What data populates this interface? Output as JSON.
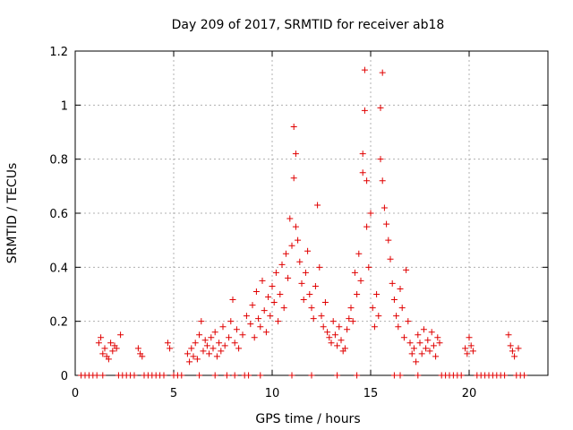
{
  "chart_data": {
    "type": "scatter",
    "title": "Day 209 of 2017, SRMTID for receiver ab18",
    "xlabel": "GPS time / hours",
    "ylabel": "SRMTID / TECUs",
    "xlim": [
      0,
      24
    ],
    "ylim": [
      0,
      1.2
    ],
    "xticks": [
      0,
      5,
      10,
      15,
      20
    ],
    "xtick_labels": [
      "0",
      "5",
      "10",
      "15",
      "20"
    ],
    "yticks": [
      0,
      0.2,
      0.4,
      0.6,
      0.8,
      1.0,
      1.2
    ],
    "ytick_labels": [
      "0",
      "0.2",
      "0.4",
      "0.6",
      "0.8",
      "1",
      "1.2"
    ],
    "grid": true,
    "marker": "+",
    "color": "#e00000",
    "series": [
      {
        "name": "SRMTID",
        "x": [
          1.2,
          1.3,
          1.4,
          1.5,
          1.6,
          1.7,
          1.8,
          1.9,
          2.0,
          2.1,
          2.3,
          3.2,
          3.3,
          3.4,
          4.7,
          4.8,
          5.7,
          5.8,
          5.9,
          6.0,
          6.1,
          6.2,
          6.3,
          6.4,
          6.5,
          6.6,
          6.7,
          6.8,
          6.9,
          7.0,
          7.1,
          7.2,
          7.3,
          7.4,
          7.5,
          7.6,
          7.8,
          7.9,
          8.0,
          8.1,
          8.2,
          8.3,
          8.5,
          8.7,
          8.9,
          9.0,
          9.1,
          9.2,
          9.3,
          9.4,
          9.5,
          9.6,
          9.7,
          9.8,
          9.9,
          10.0,
          10.1,
          10.2,
          10.3,
          10.4,
          10.5,
          10.6,
          10.7,
          10.8,
          10.9,
          11.0,
          11.1,
          11.1,
          11.2,
          11.2,
          11.3,
          11.4,
          11.5,
          11.6,
          11.7,
          11.8,
          11.9,
          12.0,
          12.1,
          12.2,
          12.3,
          12.4,
          12.5,
          12.6,
          12.7,
          12.8,
          12.9,
          13.0,
          13.1,
          13.2,
          13.3,
          13.4,
          13.5,
          13.6,
          13.7,
          13.8,
          13.9,
          14.0,
          14.1,
          14.2,
          14.3,
          14.4,
          14.5,
          14.6,
          14.6,
          14.7,
          14.7,
          14.8,
          14.8,
          14.9,
          15.0,
          15.1,
          15.2,
          15.3,
          15.4,
          15.5,
          15.5,
          15.6,
          15.6,
          15.7,
          15.8,
          15.9,
          16.0,
          16.1,
          16.2,
          16.3,
          16.4,
          16.5,
          16.6,
          16.7,
          16.8,
          16.9,
          17.0,
          17.1,
          17.2,
          17.3,
          17.4,
          17.5,
          17.6,
          17.7,
          17.8,
          17.9,
          18.0,
          18.1,
          18.2,
          18.3,
          18.4,
          18.5,
          19.8,
          19.9,
          20.0,
          20.1,
          20.2,
          22.0,
          22.1,
          22.2,
          22.3,
          22.5,
          0.3,
          0.5,
          0.7,
          0.9,
          1.1,
          1.4,
          2.2,
          2.4,
          2.6,
          2.8,
          3.0,
          3.5,
          3.7,
          3.9,
          4.1,
          4.3,
          4.5,
          5.0,
          5.2,
          5.4,
          6.3,
          7.1,
          7.7,
          8.1,
          8.6,
          8.8,
          9.4,
          11.0,
          12.0,
          13.3,
          14.3,
          16.2,
          16.5,
          17.4,
          18.6,
          18.8,
          19.0,
          19.2,
          19.4,
          19.6,
          20.4,
          20.6,
          20.8,
          21.0,
          21.2,
          21.4,
          21.6,
          21.8,
          22.4,
          22.6,
          22.8
        ],
        "y": [
          0.12,
          0.14,
          0.08,
          0.1,
          0.07,
          0.06,
          0.12,
          0.09,
          0.11,
          0.1,
          0.15,
          0.1,
          0.08,
          0.07,
          0.12,
          0.1,
          0.08,
          0.05,
          0.1,
          0.07,
          0.12,
          0.06,
          0.15,
          0.2,
          0.09,
          0.13,
          0.11,
          0.08,
          0.14,
          0.1,
          0.16,
          0.07,
          0.12,
          0.09,
          0.18,
          0.11,
          0.14,
          0.2,
          0.28,
          0.12,
          0.17,
          0.1,
          0.15,
          0.22,
          0.19,
          0.26,
          0.14,
          0.31,
          0.21,
          0.18,
          0.35,
          0.24,
          0.16,
          0.29,
          0.22,
          0.33,
          0.27,
          0.38,
          0.2,
          0.3,
          0.41,
          0.25,
          0.45,
          0.36,
          0.58,
          0.48,
          0.92,
          0.73,
          0.82,
          0.55,
          0.5,
          0.42,
          0.34,
          0.28,
          0.38,
          0.46,
          0.3,
          0.25,
          0.21,
          0.33,
          0.63,
          0.4,
          0.22,
          0.18,
          0.27,
          0.16,
          0.14,
          0.12,
          0.2,
          0.15,
          0.11,
          0.18,
          0.13,
          0.09,
          0.1,
          0.17,
          0.21,
          0.25,
          0.2,
          0.38,
          0.3,
          0.45,
          0.35,
          0.75,
          0.82,
          1.13,
          0.98,
          0.55,
          0.72,
          0.4,
          0.6,
          0.25,
          0.18,
          0.3,
          0.22,
          0.99,
          0.8,
          1.12,
          0.72,
          0.62,
          0.56,
          0.5,
          0.43,
          0.34,
          0.28,
          0.22,
          0.18,
          0.32,
          0.25,
          0.14,
          0.39,
          0.2,
          0.12,
          0.08,
          0.1,
          0.05,
          0.15,
          0.12,
          0.08,
          0.17,
          0.1,
          0.13,
          0.09,
          0.16,
          0.11,
          0.07,
          0.14,
          0.12,
          0.1,
          0.08,
          0.14,
          0.11,
          0.09,
          0.15,
          0.11,
          0.09,
          0.07,
          0.1,
          0,
          0,
          0,
          0,
          0,
          0,
          0,
          0,
          0,
          0,
          0,
          0,
          0,
          0,
          0,
          0,
          0,
          0,
          0,
          0,
          0,
          0,
          0,
          0,
          0,
          0,
          0,
          0,
          0,
          0,
          0,
          0,
          0,
          0,
          0,
          0,
          0,
          0,
          0,
          0,
          0,
          0,
          0,
          0,
          0,
          0,
          0,
          0,
          0,
          0,
          0
        ]
      }
    ]
  }
}
